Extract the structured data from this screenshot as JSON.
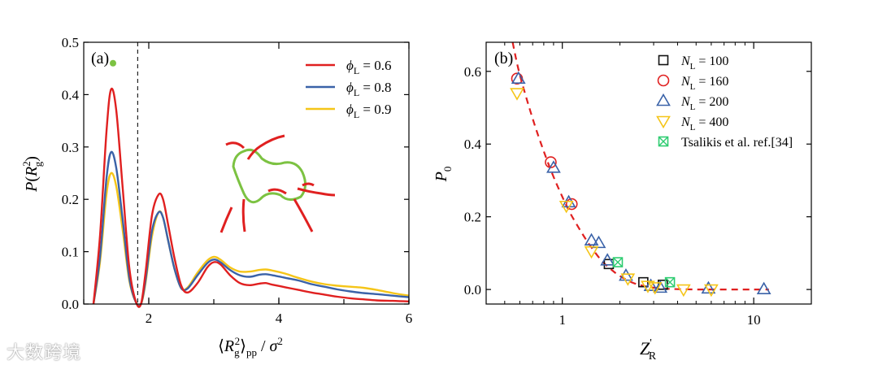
{
  "chart_data": [
    {
      "type": "line",
      "panel_label": "(a)",
      "xlabel": "⟨Rg²⟩pp / σ²",
      "ylabel": "P(Rg²)",
      "xlim": [
        1,
        6
      ],
      "ylim": [
        0,
        0.5
      ],
      "xticks": [
        2,
        4,
        6
      ],
      "yticks": [
        0.0,
        0.1,
        0.2,
        0.3,
        0.4,
        0.5
      ],
      "ytick_labels": [
        "0.0",
        "0.1",
        "0.2",
        "0.3",
        "0.4",
        "0.5"
      ],
      "xtick_labels": [
        "2",
        "4",
        "6"
      ],
      "vline_x": 1.83,
      "legend_position": "top-right",
      "series": [
        {
          "name": "φL = 0.6",
          "color": "#e02020",
          "x": [
            1.15,
            1.25,
            1.35,
            1.42,
            1.5,
            1.6,
            1.7,
            1.8,
            1.88,
            1.95,
            2.05,
            2.15,
            2.22,
            2.3,
            2.4,
            2.5,
            2.6,
            2.75,
            2.9,
            3.0,
            3.1,
            3.25,
            3.4,
            3.55,
            3.7,
            3.8,
            3.9,
            4.1,
            4.3,
            4.5,
            4.7,
            4.9,
            5.1,
            5.3,
            5.5,
            5.75,
            6.0
          ],
          "y": [
            0.0,
            0.13,
            0.33,
            0.41,
            0.37,
            0.22,
            0.07,
            0.005,
            0.0,
            0.06,
            0.17,
            0.209,
            0.2,
            0.15,
            0.085,
            0.035,
            0.022,
            0.04,
            0.07,
            0.08,
            0.076,
            0.055,
            0.04,
            0.036,
            0.039,
            0.04,
            0.037,
            0.032,
            0.027,
            0.022,
            0.018,
            0.014,
            0.011,
            0.009,
            0.007,
            0.006,
            0.005
          ]
        },
        {
          "name": "φL = 0.8",
          "color": "#3a62a8",
          "x": [
            1.15,
            1.25,
            1.35,
            1.42,
            1.5,
            1.6,
            1.7,
            1.8,
            1.88,
            1.95,
            2.05,
            2.15,
            2.22,
            2.3,
            2.4,
            2.5,
            2.6,
            2.75,
            2.9,
            3.0,
            3.1,
            3.25,
            3.4,
            3.55,
            3.7,
            3.8,
            3.9,
            4.1,
            4.3,
            4.5,
            4.7,
            4.9,
            5.1,
            5.3,
            5.5,
            5.75,
            6.0
          ],
          "y": [
            0.0,
            0.09,
            0.24,
            0.29,
            0.26,
            0.16,
            0.05,
            0.004,
            0.0,
            0.045,
            0.14,
            0.175,
            0.165,
            0.12,
            0.065,
            0.03,
            0.03,
            0.055,
            0.078,
            0.085,
            0.08,
            0.065,
            0.055,
            0.052,
            0.056,
            0.057,
            0.055,
            0.05,
            0.045,
            0.038,
            0.033,
            0.028,
            0.024,
            0.021,
            0.019,
            0.016,
            0.013
          ]
        },
        {
          "name": "φL = 0.9",
          "color": "#f5c518",
          "x": [
            1.15,
            1.25,
            1.35,
            1.42,
            1.5,
            1.6,
            1.7,
            1.8,
            1.88,
            1.95,
            2.05,
            2.15,
            2.22,
            2.3,
            2.4,
            2.5,
            2.6,
            2.75,
            2.9,
            3.0,
            3.1,
            3.25,
            3.4,
            3.55,
            3.7,
            3.8,
            3.9,
            4.1,
            4.3,
            4.5,
            4.7,
            4.9,
            5.1,
            5.3,
            5.5,
            5.75,
            6.0
          ],
          "y": [
            0.0,
            0.08,
            0.21,
            0.25,
            0.225,
            0.14,
            0.045,
            0.004,
            0.0,
            0.04,
            0.13,
            0.175,
            0.165,
            0.12,
            0.065,
            0.03,
            0.032,
            0.06,
            0.083,
            0.09,
            0.085,
            0.07,
            0.062,
            0.062,
            0.065,
            0.066,
            0.064,
            0.058,
            0.05,
            0.043,
            0.038,
            0.035,
            0.033,
            0.031,
            0.027,
            0.021,
            0.016
          ]
        }
      ],
      "marker": {
        "x": 1.45,
        "y": 0.46,
        "color": "#7cc242"
      }
    },
    {
      "type": "scatter",
      "panel_label": "(b)",
      "xlabel": "Z'R",
      "ylabel": "P0",
      "xscale": "log",
      "xlim": [
        0.4,
        20
      ],
      "ylim": [
        -0.04,
        0.68
      ],
      "xticks": [
        1,
        10
      ],
      "xtick_labels": [
        "1",
        "10"
      ],
      "yticks": [
        0.0,
        0.2,
        0.4,
        0.6
      ],
      "ytick_labels": [
        "0.0",
        "0.2",
        "0.4",
        "0.6"
      ],
      "legend_position": "top-right",
      "series": [
        {
          "name": "NL = 100",
          "marker": "square",
          "color": "#111111",
          "x": [
            1.75,
            2.65,
            3.35
          ],
          "y": [
            0.07,
            0.02,
            0.013
          ]
        },
        {
          "name": "NL = 160",
          "marker": "circle",
          "color": "#e02020",
          "x": [
            0.58,
            0.87,
            1.12
          ],
          "y": [
            0.58,
            0.35,
            0.235
          ]
        },
        {
          "name": "NL = 200",
          "marker": "triangle-up",
          "color": "#3a62a8",
          "x": [
            0.59,
            0.9,
            1.08,
            1.42,
            1.55,
            1.72,
            2.15,
            2.9,
            3.25,
            5.8,
            11.3
          ],
          "y": [
            0.58,
            0.335,
            0.24,
            0.135,
            0.128,
            0.08,
            0.038,
            0.01,
            0.005,
            0.003,
            0.001
          ]
        },
        {
          "name": "NL = 400",
          "marker": "triangle-down",
          "color": "#f5c518",
          "x": [
            0.58,
            1.05,
            1.42,
            2.2,
            2.8,
            3.05,
            4.3,
            6.0
          ],
          "y": [
            0.54,
            0.23,
            0.105,
            0.03,
            0.01,
            0.006,
            0.0,
            0.0
          ]
        },
        {
          "name": "Tsalikis et al. ref.[34]",
          "marker": "square-x",
          "color": "#2ecc71",
          "x": [
            1.95,
            3.65
          ],
          "y": [
            0.075,
            0.02
          ]
        }
      ],
      "fit_curve": {
        "style": "dashed",
        "color": "#e02020",
        "x": [
          0.55,
          0.6,
          0.7,
          0.8,
          0.9,
          1.0,
          1.1,
          1.25,
          1.4,
          1.6,
          1.8,
          2.0,
          2.3,
          2.6,
          3.0,
          3.5,
          4.0,
          5.0,
          6.0,
          8.0,
          10.0,
          12.0
        ],
        "y": [
          0.68,
          0.59,
          0.47,
          0.38,
          0.31,
          0.255,
          0.21,
          0.16,
          0.12,
          0.08,
          0.055,
          0.037,
          0.02,
          0.011,
          0.005,
          0.002,
          0.001,
          0.0,
          0.0,
          0.0,
          0.0,
          0.0
        ]
      }
    }
  ],
  "legend_a": {
    "items": [
      {
        "base": "ϕ",
        "sub": "L",
        "tail": " = 0.6"
      },
      {
        "base": "ϕ",
        "sub": "L",
        "tail": " = 0.8"
      },
      {
        "base": "ϕ",
        "sub": "L",
        "tail": " = 0.9"
      }
    ]
  },
  "legend_b": {
    "items": [
      {
        "base": "N",
        "sub": "L",
        "tail": " = 100"
      },
      {
        "base": "N",
        "sub": "L",
        "tail": " = 160"
      },
      {
        "base": "N",
        "sub": "L",
        "tail": " = 200"
      },
      {
        "base": "N",
        "sub": "L",
        "tail": " = 400"
      },
      {
        "base": "",
        "sub": "",
        "tail": "Tsalikis et al. ref.[34]"
      }
    ]
  },
  "axes_text": {
    "a_ylabel": {
      "p": "P",
      "open": "(",
      "r": "R",
      "sup": "2",
      "sub": "g",
      "close": ")"
    },
    "a_xlabel": {
      "open": "⟨",
      "r": "R",
      "sub": "g",
      "sup": "2",
      "close": "⟩",
      "sub2": "pp",
      "tail": " / ",
      "sigma": "σ",
      "sup2": "2"
    },
    "b_ylabel": {
      "p": "P",
      "sub": "0"
    },
    "b_xlabel": {
      "z": "Z",
      "prime": "'",
      "sub": "R"
    }
  },
  "watermark": "大数跨境"
}
